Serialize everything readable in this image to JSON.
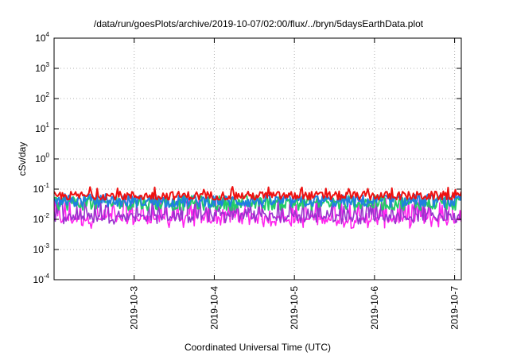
{
  "chart_data": {
    "type": "line",
    "title": "/data/run/goesPlots/archive/2019-10-07/02:00/flux/../bryn/5daysEarthData.plot",
    "xlabel": "Coordinated Universal Time (UTC)",
    "ylabel": "cSv/day",
    "yscale": "log",
    "ylim": [
      0.0001,
      10000
    ],
    "y_ticks": [
      {
        "base": "10",
        "exp": "-4",
        "value": 0.0001
      },
      {
        "base": "10",
        "exp": "-3",
        "value": 0.001
      },
      {
        "base": "10",
        "exp": "-2",
        "value": 0.01
      },
      {
        "base": "10",
        "exp": "-1",
        "value": 0.1
      },
      {
        "base": "10",
        "exp": "0",
        "value": 1
      },
      {
        "base": "10",
        "exp": "1",
        "value": 10
      },
      {
        "base": "10",
        "exp": "2",
        "value": 100
      },
      {
        "base": "10",
        "exp": "3",
        "value": 1000
      },
      {
        "base": "10",
        "exp": "4",
        "value": 10000
      }
    ],
    "x_ticks": [
      "2019-10-3",
      "2019-10-4",
      "2019-10-5",
      "2019-10-6",
      "2019-10-7"
    ],
    "xlim": [
      "2019-10-02 00:00",
      "2019-10-07 02:00"
    ],
    "grid": true,
    "legend": "none",
    "series": [
      {
        "color": "#ee1111",
        "min": 0.045,
        "max": 0.12,
        "typical": 0.06
      },
      {
        "color": "#22cc66",
        "min": 0.012,
        "max": 0.06,
        "typical": 0.035
      },
      {
        "color": "#1f7fe0",
        "min": 0.018,
        "max": 0.07,
        "typical": 0.04
      },
      {
        "color": "#9933cc",
        "min": 0.007,
        "max": 0.05,
        "typical": 0.012
      },
      {
        "color": "#ff22ee",
        "min": 0.005,
        "max": 0.05,
        "typical": 0.01
      }
    ]
  }
}
